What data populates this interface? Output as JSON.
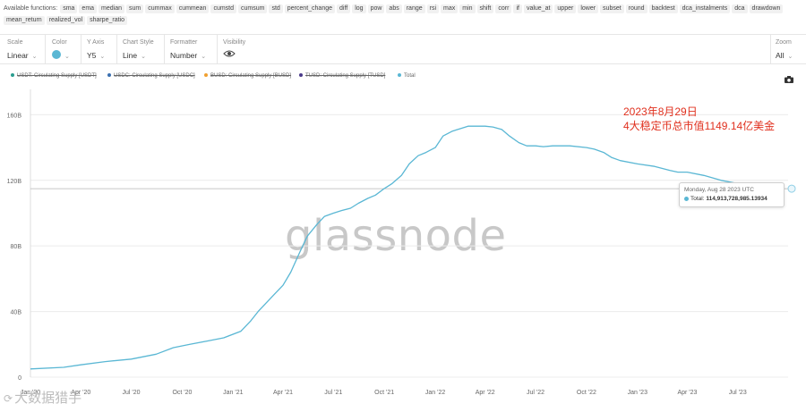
{
  "functions": {
    "label": "Available functions:",
    "items": [
      "sma",
      "ema",
      "median",
      "sum",
      "cummax",
      "cummean",
      "cumstd",
      "cumsum",
      "std",
      "percent_change",
      "diff",
      "log",
      "pow",
      "abs",
      "range",
      "rsi",
      "max",
      "min",
      "shift",
      "corr",
      "if",
      "value_at",
      "upper",
      "lower",
      "subset",
      "round",
      "backtest",
      "dca_instalments",
      "dca",
      "drawdown",
      "mean_return",
      "realized_vol",
      "sharpe_ratio"
    ]
  },
  "controls": {
    "scale": {
      "label": "Scale",
      "value": "Linear"
    },
    "color": {
      "label": "Color",
      "value_color": "#5ab7d4"
    },
    "y_axis": {
      "label": "Y Axis",
      "value": "Y5"
    },
    "chart_style": {
      "label": "Chart Style",
      "value": "Line"
    },
    "formatter": {
      "label": "Formatter",
      "value": "Number"
    },
    "visibility": {
      "label": "Visibility"
    },
    "zoom": {
      "label": "Zoom",
      "value": "All"
    }
  },
  "legend": [
    {
      "label": "USDT: Circulating Supply [USDT]",
      "color": "#2a9d8f",
      "struck": true
    },
    {
      "label": "USDC: Circulating Supply [USDC]",
      "color": "#3a6fb0",
      "struck": true
    },
    {
      "label": "BUSD: Circulating Supply [BUSD]",
      "color": "#f0a030",
      "struck": true
    },
    {
      "label": "TUSD: Circulating Supply [TUSD]",
      "color": "#4a3a8a",
      "struck": true
    },
    {
      "label": "Total",
      "color": "#5ab7d4",
      "struck": false
    }
  ],
  "annotation": {
    "line1": "2023年8月29日",
    "line2": "4大稳定币总市值1149.14亿美金",
    "color": "#e0301e"
  },
  "tooltip": {
    "date": "Monday, Aug 28 2023 UTC",
    "series": "Total:",
    "value": "114,913,728,985.13934"
  },
  "watermark": {
    "logo": "glassnode",
    "corner": "大数据猎手",
    "corner_symbol": "⟳"
  },
  "chart_data": {
    "type": "line",
    "x_ticks": [
      "Jan '20",
      "Apr '20",
      "Jul '20",
      "Oct '20",
      "Jan '21",
      "Apr '21",
      "Jul '21",
      "Oct '21",
      "Jan '22",
      "Apr '22",
      "Jul '22",
      "Oct '22",
      "Jan '23",
      "Apr '23",
      "Jul '23"
    ],
    "y_ticks": [
      "0",
      "40B",
      "80B",
      "120B",
      "160B"
    ],
    "ylim": [
      0,
      170000000000
    ],
    "xlim": [
      "2020-01-01",
      "2023-09-30"
    ],
    "grid": "horizontal",
    "series": [
      {
        "name": "Total",
        "color": "#5ab7d4",
        "x": [
          "2020-01-01",
          "2020-03-01",
          "2020-04-01",
          "2020-05-15",
          "2020-07-01",
          "2020-08-15",
          "2020-09-15",
          "2020-10-15",
          "2020-11-15",
          "2020-12-15",
          "2021-01-15",
          "2021-02-01",
          "2021-02-15",
          "2021-03-01",
          "2021-03-15",
          "2021-04-01",
          "2021-04-15",
          "2021-05-01",
          "2021-05-15",
          "2021-06-01",
          "2021-06-15",
          "2021-07-01",
          "2021-07-15",
          "2021-08-01",
          "2021-08-15",
          "2021-09-01",
          "2021-09-15",
          "2021-10-01",
          "2021-10-15",
          "2021-11-01",
          "2021-11-15",
          "2021-12-01",
          "2021-12-15",
          "2022-01-01",
          "2022-01-15",
          "2022-02-01",
          "2022-02-15",
          "2022-03-01",
          "2022-03-15",
          "2022-04-01",
          "2022-04-15",
          "2022-05-01",
          "2022-05-15",
          "2022-06-01",
          "2022-06-15",
          "2022-07-01",
          "2022-07-15",
          "2022-08-01",
          "2022-09-01",
          "2022-10-01",
          "2022-10-15",
          "2022-11-01",
          "2022-11-15",
          "2022-12-01",
          "2023-01-01",
          "2023-02-01",
          "2023-03-01",
          "2023-03-15",
          "2023-04-01",
          "2023-05-01",
          "2023-06-01",
          "2023-07-01",
          "2023-08-01",
          "2023-08-28"
        ],
        "y": [
          5000000000,
          6000000000,
          7500000000,
          9500000000,
          11000000000,
          14000000000,
          18000000000,
          20000000000,
          22000000000,
          24000000000,
          28000000000,
          34000000000,
          40000000000,
          45000000000,
          50000000000,
          56000000000,
          64000000000,
          76000000000,
          86000000000,
          93000000000,
          98000000000,
          100000000000,
          101500000000,
          103000000000,
          106000000000,
          109000000000,
          111000000000,
          115000000000,
          118000000000,
          123000000000,
          130000000000,
          135000000000,
          137000000000,
          140000000000,
          147000000000,
          150000000000,
          151500000000,
          153000000000,
          153000000000,
          153000000000,
          152500000000,
          151000000000,
          147000000000,
          143000000000,
          141000000000,
          141000000000,
          140500000000,
          141000000000,
          141000000000,
          140000000000,
          139000000000,
          137000000000,
          134000000000,
          132000000000,
          130000000000,
          128500000000,
          126000000000,
          125000000000,
          125000000000,
          123000000000,
          120000000000,
          118000000000,
          116000000000,
          114900000000
        ]
      }
    ],
    "hover": {
      "x": "2023-08-28",
      "y": 114913728985.13934
    }
  }
}
